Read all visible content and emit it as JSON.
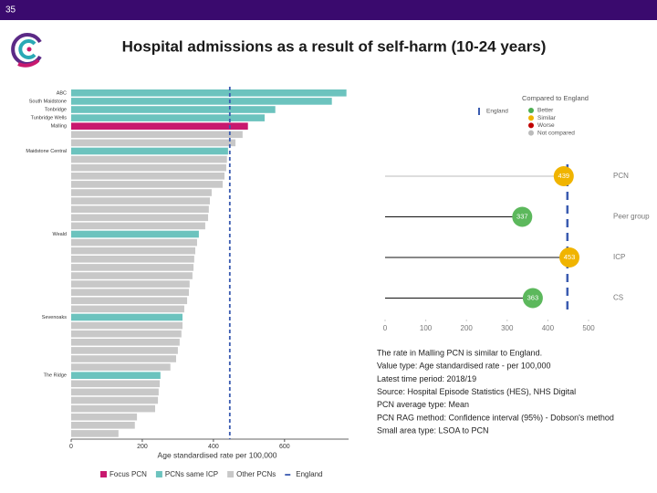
{
  "header": {
    "page_number": "35",
    "title": "Hospital admissions as a result of self-harm (10-24 years)"
  },
  "chart_data": [
    {
      "type": "bar",
      "orientation": "horizontal",
      "categories": [
        "ABC",
        "South Maidstone",
        "Tonbridge",
        "Tunbridge Wells",
        "Malling",
        null,
        null,
        "Maidstone Central",
        null,
        null,
        null,
        null,
        null,
        null,
        null,
        null,
        null,
        "Weald",
        null,
        null,
        null,
        null,
        null,
        null,
        null,
        null,
        null,
        "Sevenoaks",
        null,
        null,
        null,
        null,
        null,
        null,
        "The Ridge",
        null,
        null,
        null,
        null,
        null,
        null,
        null
      ],
      "values": [
        774,
        733,
        574,
        544,
        497,
        482,
        462,
        441,
        438,
        436,
        431,
        426,
        395,
        390,
        387,
        385,
        377,
        359,
        354,
        349,
        346,
        344,
        341,
        333,
        331,
        326,
        318,
        313,
        313,
        310,
        305,
        300,
        295,
        279,
        251,
        249,
        246,
        244,
        236,
        185,
        179,
        133
      ],
      "colors": [
        "#6cc3be",
        "#6cc3be",
        "#6cc3be",
        "#6cc3be",
        "#c8196e",
        "#c8c8c8",
        "#c8c8c8",
        "#6cc3be",
        "#c8c8c8",
        "#c8c8c8",
        "#c8c8c8",
        "#c8c8c8",
        "#c8c8c8",
        "#c8c8c8",
        "#c8c8c8",
        "#c8c8c8",
        "#c8c8c8",
        "#6cc3be",
        "#c8c8c8",
        "#c8c8c8",
        "#c8c8c8",
        "#c8c8c8",
        "#c8c8c8",
        "#c8c8c8",
        "#c8c8c8",
        "#c8c8c8",
        "#c8c8c8",
        "#6cc3be",
        "#c8c8c8",
        "#c8c8c8",
        "#c8c8c8",
        "#c8c8c8",
        "#c8c8c8",
        "#c8c8c8",
        "#6cc3be",
        "#c8c8c8",
        "#c8c8c8",
        "#c8c8c8",
        "#c8c8c8",
        "#c8c8c8",
        "#c8c8c8",
        "#c8c8c8"
      ],
      "xlim": [
        0,
        780
      ],
      "xticks": [
        0,
        200,
        400,
        600
      ],
      "xlabel": "Age standardised rate per 100,000",
      "reference": {
        "name": "England",
        "value": 446,
        "color": "#3a5bb0"
      },
      "legend": [
        {
          "name": "Focus PCN",
          "color": "#c8196e"
        },
        {
          "name": "PCNs same ICP",
          "color": "#6cc3be"
        },
        {
          "name": "Other PCNs",
          "color": "#c8c8c8"
        }
      ]
    },
    {
      "type": "dot",
      "categories": [
        "PCN",
        "Peer group",
        "ICP",
        "CS"
      ],
      "values": [
        439,
        337,
        453,
        363
      ],
      "colors": [
        "#f0b400",
        "#5cb85c",
        "#f0b400",
        "#5cb85c"
      ],
      "line_colors": [
        "#bbbbbb",
        "#111111",
        "#111111",
        "#111111"
      ],
      "xlim": [
        0,
        500
      ],
      "xticks": [
        0,
        100,
        200,
        300,
        400,
        500
      ],
      "reference": {
        "name": "England",
        "value": 448,
        "color": "#3a5bb0"
      },
      "legend_title": "Compared to England",
      "legend": [
        {
          "name": "Better",
          "color": "#4caf50"
        },
        {
          "name": "Similar",
          "color": "#f0b400"
        },
        {
          "name": "Worse",
          "color": "#c00000"
        },
        {
          "name": "Not compared",
          "color": "#bbbbbb"
        }
      ]
    }
  ],
  "notes": [
    "The rate in Malling PCN is similar to England.",
    "Value type: Age standardised rate - per 100,000",
    "Latest time period: 2018/19",
    "Source: Hospital Episode Statistics (HES), NHS Digital",
    "PCN average type: Mean",
    "PCN RAG method: Confidence interval (95%) - Dobson's method",
    "Small area type: LSOA to PCN"
  ]
}
